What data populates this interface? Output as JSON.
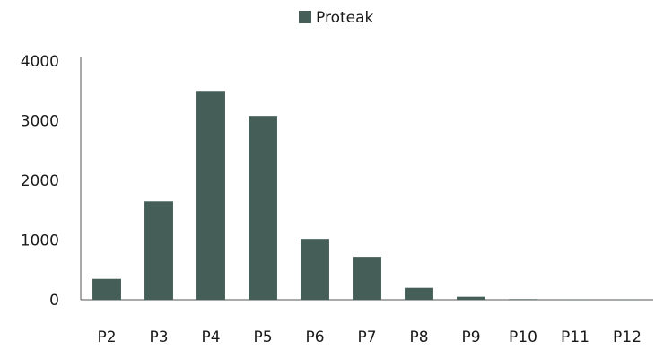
{
  "chart_data": {
    "type": "bar",
    "title": "",
    "xlabel": "",
    "ylabel": "",
    "categories": [
      "P2",
      "P3",
      "P4",
      "P5",
      "P6",
      "P7",
      "P8",
      "P9",
      "P10",
      "P11",
      "P12"
    ],
    "series": [
      {
        "name": "Proteak",
        "color": "#455f58",
        "values": [
          350,
          1650,
          3500,
          3080,
          1020,
          720,
          200,
          50,
          10,
          5,
          5
        ]
      }
    ],
    "ylim": [
      0,
      4000
    ],
    "yticks": [
      "0",
      "1000",
      "2000",
      "3000",
      "4000"
    ],
    "grid": false,
    "legend": "top-center"
  }
}
